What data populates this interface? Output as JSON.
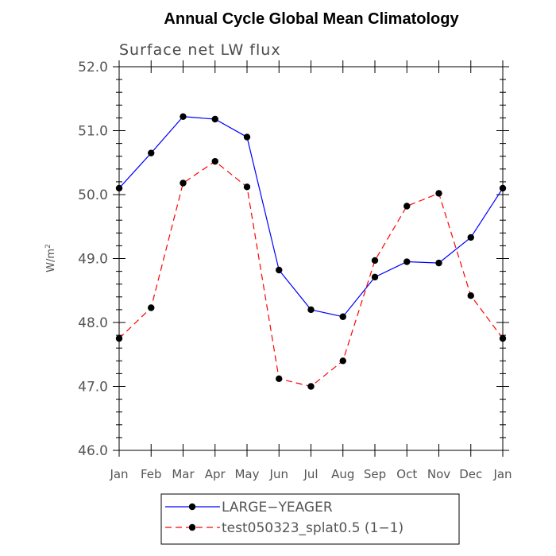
{
  "chart_data": {
    "type": "line",
    "title": "Annual Cycle Global Mean Climatology",
    "subtitle": "Surface net LW flux",
    "xlabel": "",
    "ylabel": "W/m",
    "ylabel_superscript": "2",
    "ylim": [
      46.0,
      52.0
    ],
    "yticks": [
      46.0,
      47.0,
      48.0,
      49.0,
      50.0,
      51.0,
      52.0
    ],
    "ytick_labels": [
      "46.0",
      "47.0",
      "48.0",
      "49.0",
      "50.0",
      "51.0",
      "52.0"
    ],
    "categories": [
      "Jan",
      "Feb",
      "Mar",
      "Apr",
      "May",
      "Jun",
      "Jul",
      "Aug",
      "Sep",
      "Oct",
      "Nov",
      "Dec",
      "Jan"
    ],
    "legend_position": "bottom-center",
    "series": [
      {
        "name": "LARGE−YEAGER",
        "color": "#0000ff",
        "dash": "solid",
        "values": [
          50.1,
          50.65,
          51.22,
          51.18,
          50.9,
          48.82,
          48.2,
          48.09,
          48.71,
          48.95,
          48.93,
          49.33,
          50.1
        ]
      },
      {
        "name": "test050323_splat0.5 (1−1)",
        "color": "#ff0000",
        "dash": "dashed",
        "values": [
          47.75,
          48.23,
          50.18,
          50.52,
          50.12,
          47.12,
          47.0,
          47.4,
          48.97,
          49.82,
          50.02,
          48.42,
          47.75
        ]
      }
    ]
  }
}
